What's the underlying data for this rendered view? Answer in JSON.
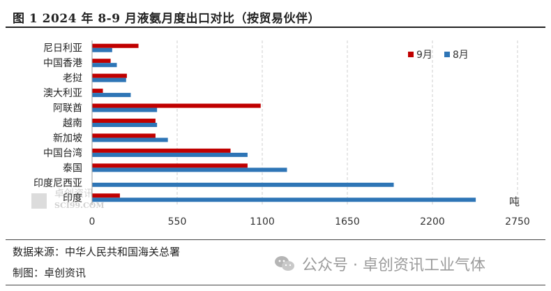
{
  "title": "图 1 2024 年 8-9 月液氨月度出口对比（按贸易伙伴）",
  "chart_data": {
    "type": "bar",
    "orientation": "horizontal",
    "categories": [
      "尼日利亚",
      "中国香港",
      "老挝",
      "澳大利亚",
      "阿联酋",
      "越南",
      "新加坡",
      "中国台湾",
      "泰国",
      "印度尼西亚",
      "印度"
    ],
    "series": [
      {
        "name": "9月",
        "color": "#c00000",
        "values": [
          300,
          120,
          225,
          70,
          1090,
          410,
          410,
          895,
          1005,
          0,
          180
        ]
      },
      {
        "name": "8月",
        "color": "#2e75b6",
        "values": [
          130,
          160,
          220,
          250,
          420,
          420,
          490,
          1005,
          1260,
          1950,
          2480
        ]
      }
    ],
    "xticks": [
      0,
      550,
      1100,
      1650,
      2200,
      2750
    ],
    "xlim": [
      0,
      2750
    ],
    "unit_label": "吨",
    "legend_position": "top-right",
    "grid": "vertical-dashed"
  },
  "source": {
    "data_source": "数据来源：中华人民共和国海关总署",
    "made_by": "制图：卓创资讯"
  },
  "watermark": {
    "text": "公众号 · 卓创资讯工业气体",
    "chart_mark": "SCI99.COM",
    "chart_mark_cn": "卓创资讯"
  }
}
